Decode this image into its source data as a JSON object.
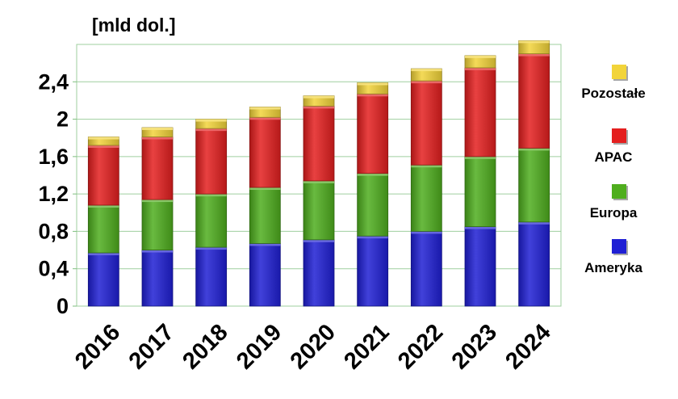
{
  "unit_label": "[mld dol.]",
  "chart_data": {
    "type": "bar",
    "stacked": true,
    "categories": [
      "2016",
      "2017",
      "2018",
      "2019",
      "2020",
      "2021",
      "2022",
      "2023",
      "2024"
    ],
    "series": [
      {
        "name": "Ameryka",
        "color": "#1f1fd4",
        "values": [
          0.57,
          0.6,
          0.63,
          0.67,
          0.71,
          0.75,
          0.8,
          0.85,
          0.9
        ]
      },
      {
        "name": "Europa",
        "color": "#4fae1e",
        "values": [
          0.51,
          0.54,
          0.57,
          0.6,
          0.63,
          0.67,
          0.71,
          0.75,
          0.79
        ]
      },
      {
        "name": "APAC",
        "color": "#e41f1f",
        "values": [
          0.64,
          0.67,
          0.7,
          0.75,
          0.8,
          0.85,
          0.9,
          0.95,
          1.01
        ]
      },
      {
        "name": "Pozostałe",
        "color": "#f2d43a",
        "values": [
          0.09,
          0.1,
          0.1,
          0.11,
          0.11,
          0.12,
          0.13,
          0.13,
          0.14
        ]
      }
    ],
    "y_ticks": [
      "0",
      "0,4",
      "0,8",
      "1,2",
      "1,6",
      "2",
      "2,4"
    ],
    "y_tick_values": [
      0,
      0.4,
      0.8,
      1.2,
      1.6,
      2.0,
      2.4
    ],
    "ylim": [
      0,
      2.8
    ],
    "grid": true,
    "legend_position": "right"
  },
  "legend": [
    {
      "label": "Pozostałe",
      "color": "#f2d43a"
    },
    {
      "label": "APAC",
      "color": "#e41f1f"
    },
    {
      "label": "Europa",
      "color": "#4fae1e"
    },
    {
      "label": "Ameryka",
      "color": "#1f1fd4"
    }
  ]
}
